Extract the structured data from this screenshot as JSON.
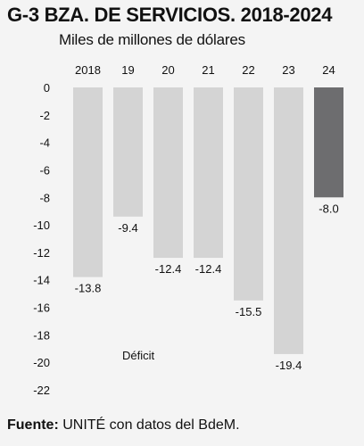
{
  "chart_data": {
    "type": "bar",
    "title": "G-3  BZA. DE SERVICIOS. 2018-2024",
    "subtitle": "Miles de millones de dólares",
    "xlabel": "",
    "ylabel": "",
    "categories": [
      "2018",
      "19",
      "20",
      "21",
      "22",
      "23",
      "24"
    ],
    "values": [
      -13.8,
      -9.4,
      -12.4,
      -12.4,
      -15.5,
      -19.4,
      -8.0
    ],
    "value_labels": [
      "-13.8",
      "-9.4",
      "-12.4",
      "-12.4",
      "-15.5",
      "-19.4",
      "-8.0"
    ],
    "ylim": [
      -22,
      0
    ],
    "yticks": [
      0,
      -2,
      -4,
      -6,
      -8,
      -10,
      -12,
      -14,
      -16,
      -18,
      -20,
      -22
    ],
    "annotation": "Déficit",
    "grid": false,
    "colors": {
      "bar": "#d4d4d4",
      "highlight_bar": "#6d6d6f",
      "background": "#f4f4f4"
    },
    "highlight_category": "24"
  },
  "source": {
    "label": "Fuente:",
    "text": " UNITÉ con datos del BdeM."
  }
}
